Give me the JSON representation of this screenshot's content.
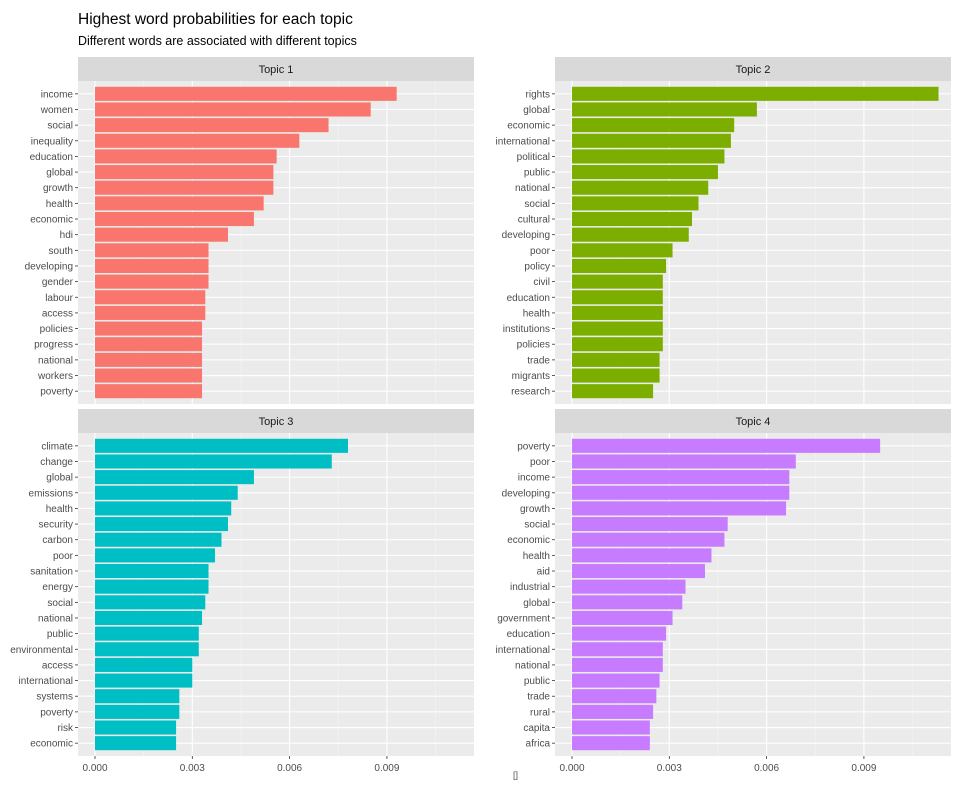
{
  "title": "Highest word probabilities for each topic",
  "subtitle": "Different words are associated with different topics",
  "footnote": "[]",
  "chart_data": {
    "type": "bar",
    "orientation": "horizontal",
    "facets": [
      {
        "name": "Topic 1",
        "color": "#F8766D",
        "categories": [
          "income",
          "women",
          "social",
          "inequality",
          "education",
          "global",
          "growth",
          "health",
          "economic",
          "hdi",
          "south",
          "developing",
          "gender",
          "labour",
          "access",
          "policies",
          "progress",
          "national",
          "workers",
          "poverty"
        ],
        "values": [
          0.0093,
          0.0085,
          0.0072,
          0.0063,
          0.0056,
          0.0055,
          0.0055,
          0.0052,
          0.0049,
          0.0041,
          0.0035,
          0.0035,
          0.0035,
          0.0034,
          0.0034,
          0.0033,
          0.0033,
          0.0033,
          0.0033,
          0.0033
        ]
      },
      {
        "name": "Topic 2",
        "color": "#7CAE00",
        "categories": [
          "rights",
          "global",
          "economic",
          "international",
          "political",
          "public",
          "national",
          "social",
          "cultural",
          "developing",
          "poor",
          "policy",
          "civil",
          "education",
          "health",
          "institutions",
          "policies",
          "trade",
          "migrants",
          "research"
        ],
        "values": [
          0.0113,
          0.0057,
          0.005,
          0.0049,
          0.0047,
          0.0045,
          0.0042,
          0.0039,
          0.0037,
          0.0036,
          0.0031,
          0.0029,
          0.0028,
          0.0028,
          0.0028,
          0.0028,
          0.0028,
          0.0027,
          0.0027,
          0.0025
        ]
      },
      {
        "name": "Topic 3",
        "color": "#00BFC4",
        "categories": [
          "climate",
          "change",
          "global",
          "emissions",
          "health",
          "security",
          "carbon",
          "poor",
          "sanitation",
          "energy",
          "social",
          "national",
          "public",
          "environmental",
          "access",
          "international",
          "systems",
          "poverty",
          "risk",
          "economic"
        ],
        "values": [
          0.0078,
          0.0073,
          0.0049,
          0.0044,
          0.0042,
          0.0041,
          0.0039,
          0.0037,
          0.0035,
          0.0035,
          0.0034,
          0.0033,
          0.0032,
          0.0032,
          0.003,
          0.003,
          0.0026,
          0.0026,
          0.0025,
          0.0025
        ]
      },
      {
        "name": "Topic 4",
        "color": "#C77CFF",
        "categories": [
          "poverty",
          "poor",
          "income",
          "developing",
          "growth",
          "social",
          "economic",
          "health",
          "aid",
          "industrial",
          "global",
          "government",
          "education",
          "international",
          "national",
          "public",
          "trade",
          "rural",
          "capita",
          "africa"
        ],
        "values": [
          0.0095,
          0.0069,
          0.0067,
          0.0067,
          0.0066,
          0.0048,
          0.0047,
          0.0043,
          0.0041,
          0.0035,
          0.0034,
          0.0031,
          0.0029,
          0.0028,
          0.0028,
          0.0027,
          0.0026,
          0.0025,
          0.0024,
          0.0024
        ]
      }
    ],
    "x_ticks": [
      "0.000",
      "0.003",
      "0.006",
      "0.009"
    ],
    "xlim": [
      0,
      0.0115
    ],
    "xlabel": "",
    "ylabel": "",
    "grid": true,
    "legend": "none"
  }
}
